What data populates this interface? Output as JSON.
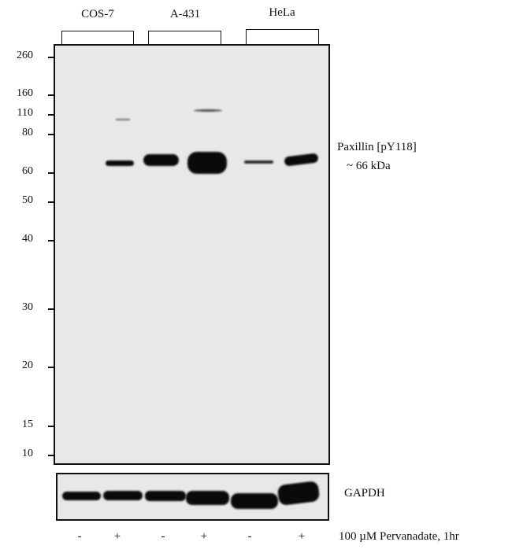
{
  "cell_lines": [
    "COS-7",
    "A-431",
    "HeLa"
  ],
  "mw_markers": [
    "260",
    "160",
    "110",
    "80",
    "60",
    "50",
    "40",
    "30",
    "20",
    "15",
    "10"
  ],
  "target_label": "Paxillin  [pY118]",
  "target_size": "~ 66 kDa",
  "loading_control": "GAPDH",
  "treatment": {
    "signs": [
      "-",
      "+",
      "-",
      "+",
      "-",
      "+"
    ],
    "label": "100 µM  Pervanadate, 1hr"
  }
}
